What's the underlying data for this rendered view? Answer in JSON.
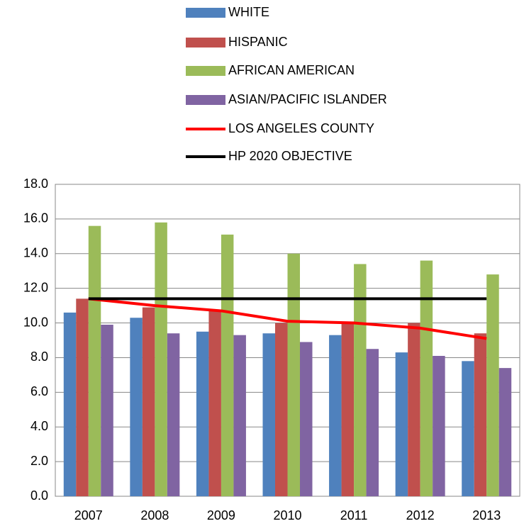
{
  "chart_data": {
    "type": "bar",
    "categories": [
      "2007",
      "2008",
      "2009",
      "2010",
      "2011",
      "2012",
      "2013"
    ],
    "series": [
      {
        "name": "WHITE",
        "color": "#4f81bd",
        "values": [
          10.6,
          10.3,
          9.5,
          9.4,
          9.3,
          8.3,
          7.8
        ]
      },
      {
        "name": "HISPANIC",
        "color": "#c0504d",
        "values": [
          11.4,
          10.9,
          10.7,
          10.0,
          10.0,
          10.0,
          9.4
        ]
      },
      {
        "name": "AFRICAN AMERICAN",
        "color": "#9bbb59",
        "values": [
          15.6,
          15.8,
          15.1,
          14.0,
          13.4,
          13.6,
          12.8
        ]
      },
      {
        "name": "ASIAN/PACIFIC ISLANDER",
        "color": "#8064a2",
        "values": [
          9.9,
          9.4,
          9.3,
          8.9,
          8.5,
          8.1,
          7.4
        ]
      },
      {
        "name": "LOS ANGELES COUNTY",
        "type": "line",
        "color": "#ff0000",
        "values": [
          11.4,
          11.0,
          10.7,
          10.1,
          10.0,
          9.7,
          9.1
        ]
      },
      {
        "name": "HP 2020 OBJECTIVE",
        "type": "line",
        "color": "#000000",
        "values": [
          11.4,
          11.4,
          11.4,
          11.4,
          11.4,
          11.4,
          11.4
        ]
      }
    ],
    "ylim": [
      0,
      18
    ],
    "yticks": [
      {
        "value": 0,
        "label": "0.0"
      },
      {
        "value": 2,
        "label": "2.0"
      },
      {
        "value": 4,
        "label": "4.0"
      },
      {
        "value": 6,
        "label": "6.0"
      },
      {
        "value": 8,
        "label": "8.0"
      },
      {
        "value": 10,
        "label": "10.0"
      },
      {
        "value": 12,
        "label": "12.0"
      },
      {
        "value": 14,
        "label": "14.0"
      },
      {
        "value": 16,
        "label": "16.0"
      },
      {
        "value": 18,
        "label": "18.0"
      }
    ],
    "grid": true,
    "legend": "top"
  }
}
